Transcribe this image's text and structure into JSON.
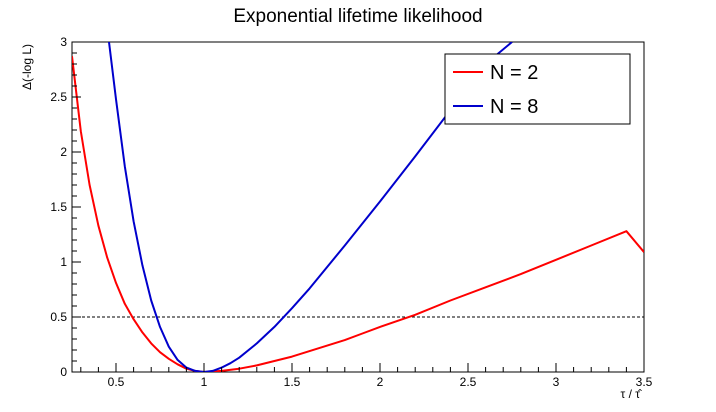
{
  "chart_data": {
    "type": "line",
    "title": "Exponential lifetime likelihood",
    "xlabel": "τ / τ̂",
    "ylabel": "Δ(-log L)",
    "xlim": [
      0.25,
      3.5
    ],
    "ylim": [
      0,
      3
    ],
    "xticks": [
      0.5,
      1,
      1.5,
      2,
      2.5,
      3,
      3.5
    ],
    "xtick_labels": [
      "0.5",
      "1",
      "1.5",
      "2",
      "2.5",
      "3",
      "3.5"
    ],
    "yticks": [
      0,
      0.5,
      1,
      1.5,
      2,
      2.5,
      3
    ],
    "ytick_labels": [
      "0",
      "0.5",
      "1",
      "1.5",
      "2",
      "2.5",
      "3"
    ],
    "legend_position": "top-right",
    "grid": false,
    "reference_line": {
      "y": 0.5,
      "style": "dashed",
      "color": "#000000"
    },
    "series": [
      {
        "name": "N = 2",
        "color": "#ff0000",
        "x": [
          0.25,
          0.3,
          0.35,
          0.4,
          0.45,
          0.5,
          0.55,
          0.6,
          0.65,
          0.7,
          0.75,
          0.8,
          0.85,
          0.9,
          0.95,
          1.0,
          1.1,
          1.2,
          1.3,
          1.4,
          1.5,
          1.6,
          1.7,
          1.8,
          1.9,
          2.0,
          2.2,
          2.4,
          2.6,
          2.8,
          3.0,
          3.2,
          3.4,
          3.5
        ],
        "y": [
          2.87,
          2.19,
          1.7,
          1.33,
          1.04,
          0.81,
          0.62,
          0.48,
          0.36,
          0.26,
          0.18,
          0.12,
          0.07,
          0.03,
          0.01,
          0.0,
          0.01,
          0.03,
          0.06,
          0.1,
          0.14,
          0.19,
          0.24,
          0.29,
          0.35,
          0.41,
          0.52,
          0.65,
          0.77,
          0.89,
          1.02,
          1.15,
          1.28,
          1.09
        ]
      },
      {
        "name": "N = 8",
        "color": "#0000cc",
        "x": [
          0.46,
          0.5,
          0.55,
          0.6,
          0.65,
          0.7,
          0.75,
          0.8,
          0.85,
          0.9,
          0.95,
          1.0,
          1.05,
          1.1,
          1.15,
          1.2,
          1.3,
          1.4,
          1.5,
          1.6,
          1.8,
          2.0,
          2.2,
          2.4,
          2.6,
          2.75
        ],
        "y": [
          3.0,
          2.48,
          1.87,
          1.37,
          0.97,
          0.65,
          0.41,
          0.23,
          0.11,
          0.04,
          0.01,
          0.0,
          0.01,
          0.04,
          0.08,
          0.13,
          0.26,
          0.41,
          0.58,
          0.76,
          1.15,
          1.55,
          1.96,
          2.38,
          2.8,
          3.0
        ]
      }
    ]
  }
}
